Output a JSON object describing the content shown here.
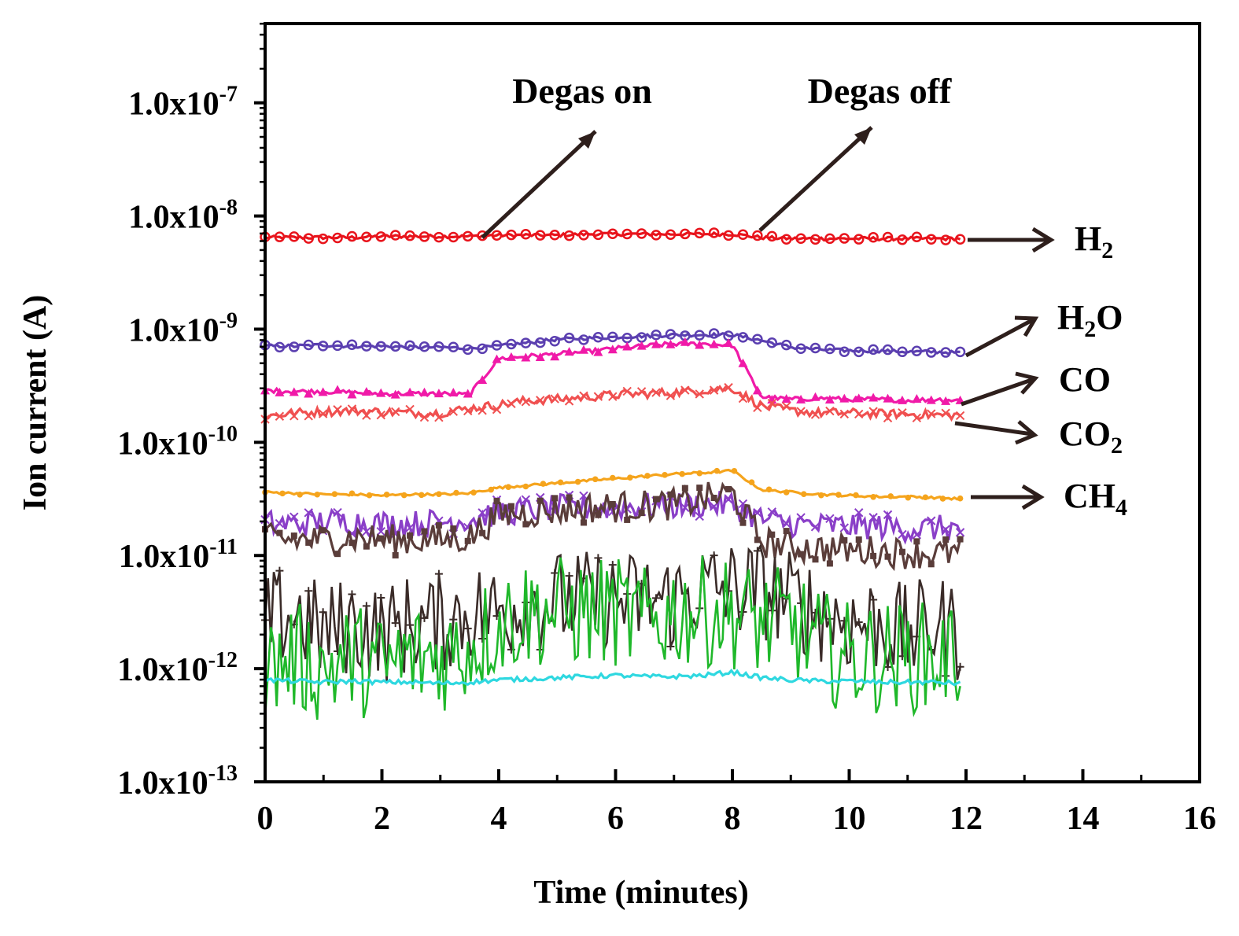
{
  "chart_data": {
    "type": "line",
    "title": "",
    "xlabel": "Time (minutes)",
    "ylabel": "Ion current (A)",
    "xlim": [
      0,
      16
    ],
    "x_ticks": [
      0,
      2,
      4,
      6,
      8,
      10,
      12,
      14,
      16
    ],
    "y_scale": "log",
    "ylim_exponent": [
      -13,
      -6.3
    ],
    "y_tick_exponents": [
      -13,
      -12,
      -11,
      -10,
      -9,
      -8,
      -7
    ],
    "y_tick_mantissa": "1.0x10",
    "grid": false,
    "x_sample": [
      0,
      0.5,
      1,
      1.5,
      2,
      2.5,
      3,
      3.5,
      4,
      4.5,
      5,
      5.5,
      6,
      6.5,
      7,
      7.5,
      8,
      8.5,
      9,
      9.5,
      10,
      10.5,
      11,
      11.5,
      11.9
    ],
    "value_note": "series values are log10 of ion current in A",
    "series": [
      {
        "name": "H2",
        "sub": "2",
        "color": "#e8141c",
        "marker": "circle",
        "noise": 0.015,
        "values": [
          -8.19,
          -8.19,
          -8.19,
          -8.19,
          -8.18,
          -8.18,
          -8.18,
          -8.18,
          -8.17,
          -8.17,
          -8.17,
          -8.16,
          -8.16,
          -8.16,
          -8.16,
          -8.16,
          -8.16,
          -8.19,
          -8.2,
          -8.2,
          -8.2,
          -8.2,
          -8.2,
          -8.2,
          -8.2
        ]
      },
      {
        "name": "H2O",
        "sub": "2",
        "color": "#5b3fb0",
        "marker": "circle",
        "noise": 0.015,
        "values": [
          -9.15,
          -9.15,
          -9.14,
          -9.15,
          -9.15,
          -9.16,
          -9.16,
          -9.17,
          -9.15,
          -9.12,
          -9.09,
          -9.08,
          -9.07,
          -9.06,
          -9.05,
          -9.05,
          -9.05,
          -9.1,
          -9.16,
          -9.18,
          -9.19,
          -9.19,
          -9.2,
          -9.2,
          -9.21
        ]
      },
      {
        "name": "CO",
        "color": "#f01aa8",
        "marker": "triangle",
        "noise": 0.02,
        "values": [
          -9.54,
          -9.55,
          -9.55,
          -9.56,
          -9.57,
          -9.57,
          -9.57,
          -9.58,
          -9.26,
          -9.24,
          -9.22,
          -9.2,
          -9.17,
          -9.15,
          -9.13,
          -9.13,
          -9.14,
          -9.6,
          -9.62,
          -9.61,
          -9.62,
          -9.62,
          -9.63,
          -9.62,
          -9.63
        ]
      },
      {
        "name": "CO2",
        "sub": "2",
        "color": "#f05050",
        "marker": "cross",
        "noise": 0.04,
        "values": [
          -9.77,
          -9.74,
          -9.73,
          -9.72,
          -9.73,
          -9.74,
          -9.74,
          -9.7,
          -9.67,
          -9.63,
          -9.62,
          -9.6,
          -9.58,
          -9.57,
          -9.56,
          -9.54,
          -9.52,
          -9.68,
          -9.72,
          -9.74,
          -9.74,
          -9.75,
          -9.75,
          -9.76,
          -9.76
        ]
      },
      {
        "name": "CH4",
        "sub": "4",
        "color": "#f5a41c",
        "marker": "dot",
        "noise": 0.01,
        "values": [
          -10.44,
          -10.45,
          -10.46,
          -10.46,
          -10.47,
          -10.46,
          -10.46,
          -10.45,
          -10.4,
          -10.38,
          -10.36,
          -10.34,
          -10.32,
          -10.3,
          -10.28,
          -10.27,
          -10.25,
          -10.42,
          -10.44,
          -10.46,
          -10.47,
          -10.48,
          -10.48,
          -10.49,
          -10.5
        ]
      },
      {
        "name": "unlabeled",
        "color": "#8a3fc8",
        "marker": "cross",
        "noise": 0.12,
        "values": [
          -10.72,
          -10.72,
          -10.7,
          -10.7,
          -10.72,
          -10.72,
          -10.7,
          -10.68,
          -10.62,
          -10.6,
          -10.58,
          -10.58,
          -10.57,
          -10.56,
          -10.56,
          -10.55,
          -10.55,
          -10.68,
          -10.72,
          -10.74,
          -10.74,
          -10.74,
          -10.76,
          -10.76,
          -10.76
        ]
      },
      {
        "name": "unlabeled",
        "color": "#5a3d3a",
        "marker": "square",
        "noise": 0.14,
        "values": [
          -10.86,
          -10.86,
          -10.86,
          -10.84,
          -10.86,
          -10.86,
          -10.86,
          -10.84,
          -10.64,
          -10.62,
          -10.6,
          -10.58,
          -10.57,
          -10.56,
          -10.55,
          -10.5,
          -10.45,
          -10.88,
          -10.92,
          -10.94,
          -10.95,
          -10.96,
          -10.98,
          -10.98,
          -10.98
        ]
      },
      {
        "name": "unlabeled",
        "color": "#3a2b28",
        "marker": "plus",
        "noise": 0.45,
        "values": [
          -11.6,
          -11.5,
          -11.7,
          -11.6,
          -11.7,
          -11.6,
          -11.6,
          -11.5,
          -11.5,
          -11.4,
          -11.4,
          -11.4,
          -11.4,
          -11.4,
          -11.4,
          -11.3,
          -11.3,
          -11.3,
          -11.4,
          -11.5,
          -11.6,
          -11.6,
          -11.7,
          -11.6,
          -11.7
        ]
      },
      {
        "name": "unlabeled",
        "color": "#1fb82a",
        "marker": "none",
        "noise": 0.5,
        "values": [
          -12.0,
          -11.9,
          -12.0,
          -11.9,
          -12.0,
          -11.9,
          -11.9,
          -11.8,
          -11.6,
          -11.5,
          -11.5,
          -11.5,
          -11.5,
          -11.6,
          -11.5,
          -11.5,
          -11.5,
          -11.6,
          -11.6,
          -11.8,
          -11.9,
          -11.9,
          -11.9,
          -11.9,
          -11.9
        ]
      },
      {
        "name": "unlabeled",
        "color": "#2fd8e0",
        "marker": "none",
        "noise": 0.02,
        "values": [
          -12.1,
          -12.11,
          -12.12,
          -12.11,
          -12.12,
          -12.12,
          -12.13,
          -12.12,
          -12.1,
          -12.09,
          -12.08,
          -12.07,
          -12.06,
          -12.07,
          -12.07,
          -12.06,
          -12.03,
          -12.08,
          -12.1,
          -12.11,
          -12.11,
          -12.12,
          -12.12,
          -12.12,
          -12.13
        ]
      }
    ],
    "annotations": [
      {
        "id": "degas-on",
        "text": "Degas on",
        "x_min": 3.7
      },
      {
        "id": "degas-off",
        "text": "Degas off",
        "x_min": 8.45
      }
    ],
    "series_labels": [
      {
        "series": "H2",
        "text": "H",
        "sub": "2"
      },
      {
        "series": "H2O",
        "text": "H",
        "sub": "2",
        "tail": "O"
      },
      {
        "series": "CO",
        "text": "CO"
      },
      {
        "series": "CO2",
        "text": "CO",
        "sub": "2"
      },
      {
        "series": "CH4",
        "text": "CH",
        "sub": "4"
      }
    ]
  }
}
